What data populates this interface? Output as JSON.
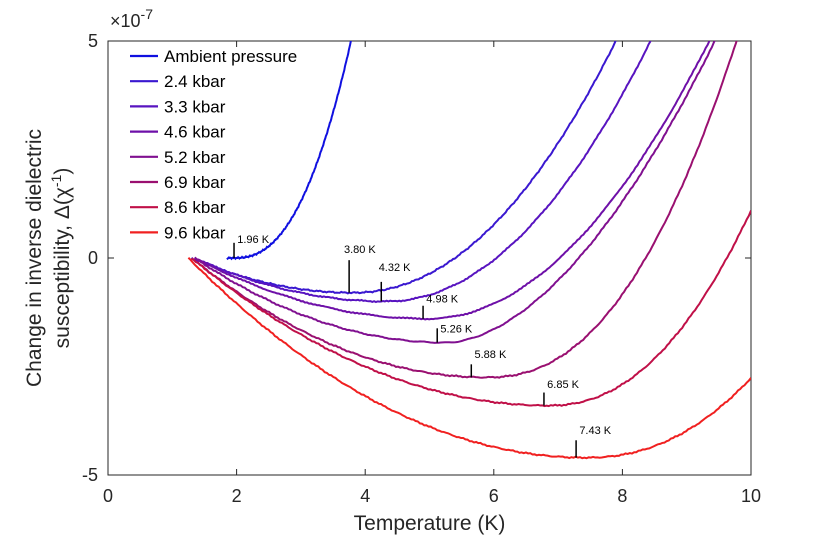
{
  "chart_data": {
    "type": "line",
    "xlabel": "Temperature (K)",
    "ylabel_line1": "Change in inverse dielectric",
    "ylabel_line2": "susceptibility, Δ(χ",
    "ylabel_sup": "-1",
    "ylabel_close": ")",
    "exponent_prefix": "×10",
    "exponent_power": "-7",
    "xlim": [
      0,
      10
    ],
    "ylim": [
      -5,
      5
    ],
    "x_ticks": [
      0,
      2,
      4,
      6,
      8,
      10
    ],
    "x_tick_labels": [
      "0",
      "2",
      "4",
      "6",
      "8",
      "10"
    ],
    "y_ticks": [
      -5,
      0,
      5
    ],
    "y_tick_labels": [
      "-5",
      "0",
      "5"
    ],
    "legend_position": "top-left",
    "series": [
      {
        "name": "Ambient pressure",
        "color": "#1010e0",
        "t0": 1.85,
        "tmin": 1.96,
        "ymin": 0.0,
        "x_end": 4.5,
        "rise_k": 1.19,
        "p": 2.4
      },
      {
        "name": "2.4 kbar",
        "color": "#3a18d0",
        "t0": 1.3,
        "tmin": 3.8,
        "ymin": -0.8,
        "x_end": 7.95,
        "rise_k": 0.3,
        "p": 2.1
      },
      {
        "name": "3.3 kbar",
        "color": "#5814c0",
        "t0": 1.35,
        "tmin": 4.32,
        "ymin": -1.0,
        "x_end": 8.6,
        "rise_k": 0.33,
        "p": 2.05
      },
      {
        "name": "4.6 kbar",
        "color": "#6e10a8",
        "t0": 1.35,
        "tmin": 4.98,
        "ymin": -1.4,
        "x_end": 9.45,
        "rise_k": 0.335,
        "p": 2.0
      },
      {
        "name": "5.2 kbar",
        "color": "#801090",
        "t0": 1.35,
        "tmin": 5.26,
        "ymin": -1.95,
        "x_end": 9.78,
        "rise_k": 0.53,
        "p": 1.8
      },
      {
        "name": "6.9 kbar",
        "color": "#9a1070",
        "t0": 1.3,
        "tmin": 5.88,
        "ymin": -2.75,
        "x_end": 10.0,
        "rise_k": 0.34,
        "p": 2.3
      },
      {
        "name": "8.6 kbar",
        "color": "#c01048",
        "t0": 1.3,
        "tmin": 6.85,
        "ymin": -3.4,
        "x_end": 10.0,
        "rise_k": 0.36,
        "p": 2.2
      },
      {
        "name": "9.6 kbar",
        "color": "#f02020",
        "t0": 1.25,
        "tmin": 7.43,
        "ymin": -4.6,
        "x_end": 10.0,
        "rise_k": 0.23,
        "p": 2.2
      }
    ],
    "annotations": [
      {
        "text": "1.96 K",
        "x": 1.96,
        "y_base": 0.0,
        "y_top": 0.35,
        "label_dx": 0.05,
        "label_y": 0.35
      },
      {
        "text": "3.80 K",
        "x": 3.75,
        "y_base": -0.8,
        "y_top": -0.05,
        "label_dx": -0.08,
        "label_y": 0.12
      },
      {
        "text": "4.32 K",
        "x": 4.25,
        "y_base": -1.0,
        "y_top": -0.55,
        "label_dx": -0.04,
        "label_y": -0.3
      },
      {
        "text": "4.98 K",
        "x": 4.9,
        "y_base": -1.4,
        "y_top": -1.1,
        "label_dx": 0.05,
        "label_y": -1.03
      },
      {
        "text": "5.26 K",
        "x": 5.12,
        "y_base": -1.95,
        "y_top": -1.62,
        "label_dx": 0.05,
        "label_y": -1.72
      },
      {
        "text": "5.88 K",
        "x": 5.65,
        "y_base": -2.75,
        "y_top": -2.45,
        "label_dx": 0.05,
        "label_y": -2.3
      },
      {
        "text": "6.85 K",
        "x": 6.78,
        "y_base": -3.4,
        "y_top": -3.1,
        "label_dx": 0.05,
        "label_y": -3.0
      },
      {
        "text": "7.43 K",
        "x": 7.28,
        "y_base": -4.6,
        "y_top": -4.2,
        "label_dx": 0.05,
        "label_y": -4.05
      }
    ]
  }
}
